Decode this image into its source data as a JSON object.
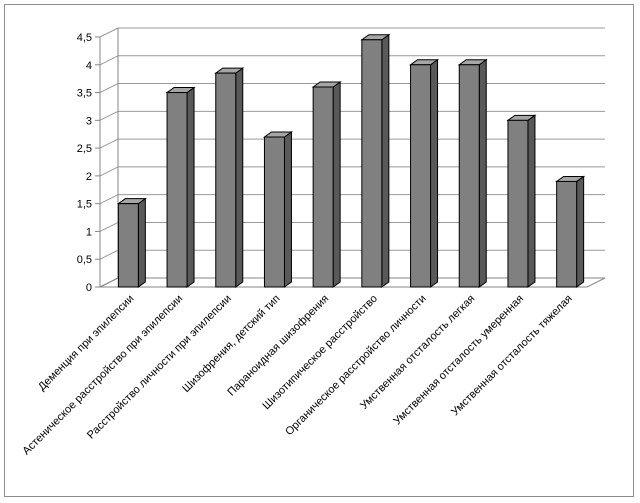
{
  "chart_data": {
    "type": "bar",
    "title": "",
    "xlabel": "",
    "ylabel": "",
    "ylim": [
      0,
      4.5
    ],
    "yticks": [
      "0",
      "0,5",
      "1",
      "1,5",
      "2",
      "2,5",
      "3",
      "3,5",
      "4",
      "4,5"
    ],
    "grid": true,
    "style": "3d-columns",
    "colors": {
      "bar_front": "#808080",
      "bar_side": "#595959",
      "bar_top": "#a6a6a6",
      "grid": "#9a9a9a",
      "outline": "#000000"
    },
    "categories": [
      "Деменция при эпилепсии",
      "Астеническое расстройство при эпилепсии",
      "Расстройство личности при эпилепсии",
      "Шизофрения, детский тип",
      "Параноидная шизофрения",
      "Шизотипическое расстройство",
      "Органическое расстройство личности",
      "Умственная отсталость легкая",
      "Умственная отсталость умеренная",
      "Умственная отсталость тяжелая"
    ],
    "values": [
      1.5,
      3.5,
      3.85,
      2.7,
      3.6,
      4.45,
      4.0,
      4.0,
      3.0,
      1.9
    ]
  }
}
